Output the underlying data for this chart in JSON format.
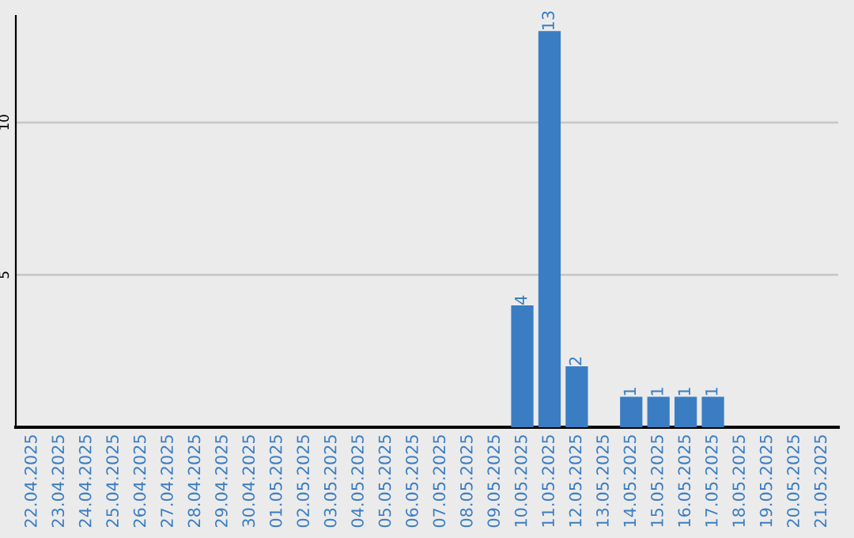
{
  "chart_data": {
    "type": "bar",
    "categories": [
      "22.04.2025",
      "23.04.2025",
      "24.04.2025",
      "25.04.2025",
      "26.04.2025",
      "27.04.2025",
      "28.04.2025",
      "29.04.2025",
      "30.04.2025",
      "01.05.2025",
      "02.05.2025",
      "03.05.2025",
      "04.05.2025",
      "05.05.2025",
      "06.05.2025",
      "07.05.2025",
      "08.05.2025",
      "09.05.2025",
      "10.05.2025",
      "11.05.2025",
      "12.05.2025",
      "13.05.2025",
      "14.05.2025",
      "15.05.2025",
      "16.05.2025",
      "17.05.2025",
      "18.05.2025",
      "19.05.2025",
      "20.05.2025",
      "21.05.2025"
    ],
    "values": [
      0,
      0,
      0,
      0,
      0,
      0,
      0,
      0,
      0,
      0,
      0,
      0,
      0,
      0,
      0,
      0,
      0,
      0,
      4,
      13,
      2,
      0,
      1,
      1,
      1,
      1,
      0,
      0,
      0,
      0
    ],
    "value_labels": [
      null,
      null,
      null,
      null,
      null,
      null,
      null,
      null,
      null,
      null,
      null,
      null,
      null,
      null,
      null,
      null,
      null,
      null,
      "4",
      "13",
      "2",
      null,
      "1",
      "1",
      "1",
      "1",
      null,
      null,
      null,
      null
    ],
    "color": "#3a7dc2",
    "ylim": [
      0,
      13.5
    ],
    "yticks": [
      5,
      10
    ],
    "grid": "y"
  }
}
